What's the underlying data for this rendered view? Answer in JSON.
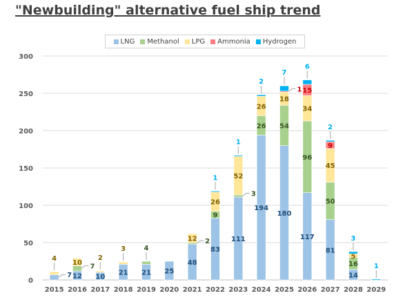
{
  "chart_data": {
    "type": "bar",
    "stacked": true,
    "title": "\"Newbuilding\" alternative fuel ship trend",
    "categories": [
      "2015",
      "2016",
      "2017",
      "2018",
      "2019",
      "2020",
      "2021",
      "2022",
      "2023",
      "2024",
      "2025",
      "2026",
      "2027",
      "2028",
      "2029"
    ],
    "series": [
      {
        "name": "LNG",
        "color": "#9DC3E6",
        "label_color": "#1F4E79",
        "values": [
          7,
          12,
          10,
          21,
          21,
          25,
          48,
          83,
          111,
          194,
          180,
          117,
          81,
          14,
          0
        ]
      },
      {
        "name": "Methanol",
        "color": "#A9D18E",
        "label_color": "#375623",
        "values": [
          0,
          7,
          0,
          0,
          4,
          0,
          2,
          9,
          3,
          26,
          54,
          96,
          50,
          16,
          0
        ]
      },
      {
        "name": "LPG",
        "color": "#FFE699",
        "label_color": "#7F6000",
        "values": [
          4,
          10,
          2,
          3,
          0,
          0,
          12,
          26,
          52,
          26,
          18,
          34,
          45,
          5,
          0
        ]
      },
      {
        "name": "Ammonia",
        "color": "#FF7C80",
        "label_color": "#C00000",
        "values": [
          0,
          0,
          0,
          0,
          0,
          0,
          0,
          0,
          0,
          0,
          1,
          15,
          9,
          0,
          0
        ]
      },
      {
        "name": "Hydrogen",
        "color": "#00B0F0",
        "label_color": "#00B0F0",
        "values": [
          0,
          0,
          0,
          0,
          0,
          0,
          0,
          1,
          1,
          2,
          7,
          6,
          2,
          3,
          1
        ]
      }
    ],
    "ylim": [
      0,
      300
    ],
    "yticks": [
      0,
      50,
      100,
      150,
      200,
      250,
      300
    ],
    "grid": true,
    "legend_position": "top"
  }
}
